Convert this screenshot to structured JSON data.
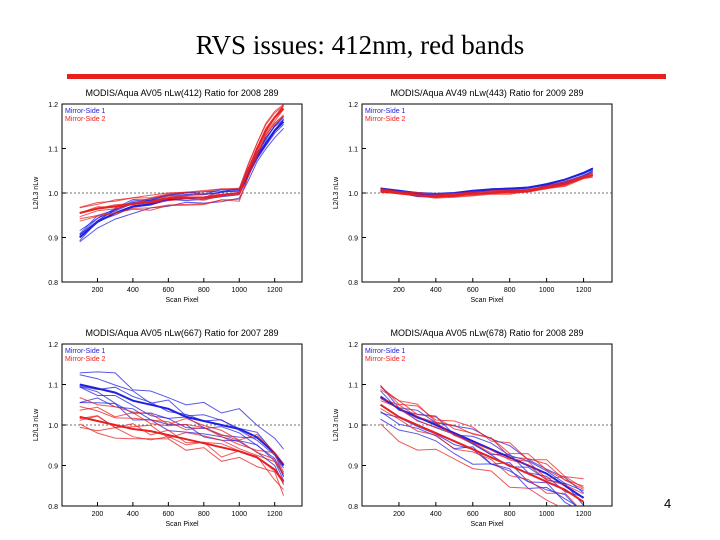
{
  "slide": {
    "title": "RVS issues: 412nm, red bands",
    "page_number": "4",
    "rule_color": "#e8201c"
  },
  "chart_data": [
    {
      "type": "line",
      "title": "MODIS/Aqua AV05 nLw(412) Ratio for 2008 289",
      "xlabel": "Scan Pixel",
      "ylabel": "L2/L3 nLw",
      "xlim": [
        0,
        1354
      ],
      "ylim": [
        0.8,
        1.2
      ],
      "xticks": [
        200,
        400,
        600,
        800,
        1000,
        1200
      ],
      "yticks": [
        0.8,
        0.9,
        1.0,
        1.1,
        1.2
      ],
      "ref_line": 1.0,
      "legend": [
        {
          "name": "Mirror-Side 1",
          "color": "#2020e0"
        },
        {
          "name": "Mirror-Side 2",
          "color": "#e82020"
        }
      ],
      "series": [
        {
          "name": "Mirror-Side 1",
          "x": [
            100,
            200,
            300,
            400,
            500,
            600,
            700,
            800,
            900,
            1000,
            1050,
            1100,
            1150,
            1200,
            1250
          ],
          "values": [
            0.9,
            0.935,
            0.955,
            0.97,
            0.975,
            0.985,
            0.988,
            0.99,
            0.995,
            1.0,
            1.04,
            1.08,
            1.11,
            1.14,
            1.16
          ]
        },
        {
          "name": "Mirror-Side 2",
          "x": [
            100,
            200,
            300,
            400,
            500,
            600,
            700,
            800,
            900,
            1000,
            1050,
            1100,
            1150,
            1200,
            1250
          ],
          "values": [
            0.955,
            0.965,
            0.97,
            0.975,
            0.98,
            0.988,
            0.99,
            0.99,
            0.995,
            1.0,
            1.05,
            1.1,
            1.14,
            1.17,
            1.19
          ]
        }
      ]
    },
    {
      "type": "line",
      "title": "MODIS/Aqua AV49 nLw(443) Ratio for 2009 289",
      "xlabel": "Scan Pixel",
      "ylabel": "L2/L3 nLw",
      "xlim": [
        0,
        1354
      ],
      "ylim": [
        0.8,
        1.2
      ],
      "xticks": [
        200,
        400,
        600,
        800,
        1000,
        1200
      ],
      "yticks": [
        0.8,
        0.9,
        1.0,
        1.1,
        1.2
      ],
      "ref_line": 1.0,
      "legend": [
        {
          "name": "Mirror-Side 1",
          "color": "#2020e0"
        },
        {
          "name": "Mirror-Side 2",
          "color": "#e82020"
        }
      ],
      "series": [
        {
          "name": "Mirror-Side 1",
          "x": [
            100,
            200,
            300,
            400,
            500,
            600,
            700,
            800,
            900,
            1000,
            1100,
            1200,
            1250
          ],
          "values": [
            1.01,
            1.005,
            1.0,
            0.998,
            1.0,
            1.005,
            1.008,
            1.01,
            1.012,
            1.02,
            1.03,
            1.045,
            1.055
          ]
        },
        {
          "name": "Mirror-Side 2",
          "x": [
            100,
            200,
            300,
            400,
            500,
            600,
            700,
            800,
            900,
            1000,
            1100,
            1200,
            1250
          ],
          "values": [
            1.005,
            1.0,
            0.995,
            0.993,
            0.995,
            0.998,
            1.0,
            1.002,
            1.005,
            1.012,
            1.02,
            1.035,
            1.04
          ]
        }
      ]
    },
    {
      "type": "line",
      "title": "MODIS/Aqua AV05 nLw(667) Ratio for 2007 289",
      "xlabel": "Scan Pixel",
      "ylabel": "L2/L3 nLw",
      "xlim": [
        0,
        1354
      ],
      "ylim": [
        0.8,
        1.2
      ],
      "xticks": [
        200,
        400,
        600,
        800,
        1000,
        1200
      ],
      "yticks": [
        0.8,
        0.9,
        1.0,
        1.1,
        1.2
      ],
      "ref_line": 1.0,
      "legend": [
        {
          "name": "Mirror-Side 1",
          "color": "#2020e0"
        },
        {
          "name": "Mirror-Side 2",
          "color": "#e82020"
        }
      ],
      "series": [
        {
          "name": "Mirror-Side 1",
          "x": [
            100,
            200,
            300,
            400,
            500,
            600,
            700,
            800,
            900,
            1000,
            1100,
            1200,
            1250
          ],
          "values": [
            1.1,
            1.09,
            1.08,
            1.06,
            1.05,
            1.04,
            1.02,
            1.01,
            1.0,
            0.99,
            0.97,
            0.93,
            0.9
          ]
        },
        {
          "name": "Mirror-Side 2",
          "x": [
            100,
            200,
            300,
            400,
            500,
            600,
            700,
            800,
            900,
            1000,
            1100,
            1200,
            1250
          ],
          "values": [
            1.02,
            1.01,
            1.0,
            0.99,
            0.985,
            0.975,
            0.965,
            0.955,
            0.945,
            0.935,
            0.92,
            0.89,
            0.86
          ]
        }
      ]
    },
    {
      "type": "line",
      "title": "MODIS/Aqua AV05 nLw(678) Ratio for 2008 289",
      "xlabel": "Scan Pixel",
      "ylabel": "L2/L3 nLw",
      "xlim": [
        0,
        1354
      ],
      "ylim": [
        0.8,
        1.2
      ],
      "xticks": [
        200,
        400,
        600,
        800,
        1000,
        1200
      ],
      "yticks": [
        0.8,
        0.9,
        1.0,
        1.1,
        1.2
      ],
      "ref_line": 1.0,
      "legend": [
        {
          "name": "Mirror-Side 1",
          "color": "#2020e0"
        },
        {
          "name": "Mirror-Side 2",
          "color": "#e82020"
        }
      ],
      "series": [
        {
          "name": "Mirror-Side 1",
          "x": [
            100,
            200,
            300,
            400,
            500,
            600,
            700,
            800,
            900,
            1000,
            1100,
            1200
          ],
          "values": [
            1.07,
            1.04,
            1.02,
            1.0,
            0.98,
            0.96,
            0.94,
            0.92,
            0.9,
            0.88,
            0.85,
            0.82
          ]
        },
        {
          "name": "Mirror-Side 2",
          "x": [
            100,
            200,
            300,
            400,
            500,
            600,
            700,
            800,
            900,
            1000,
            1100,
            1200
          ],
          "values": [
            1.05,
            1.02,
            1.0,
            0.98,
            0.96,
            0.94,
            0.92,
            0.9,
            0.88,
            0.86,
            0.84,
            0.81
          ]
        }
      ]
    }
  ]
}
